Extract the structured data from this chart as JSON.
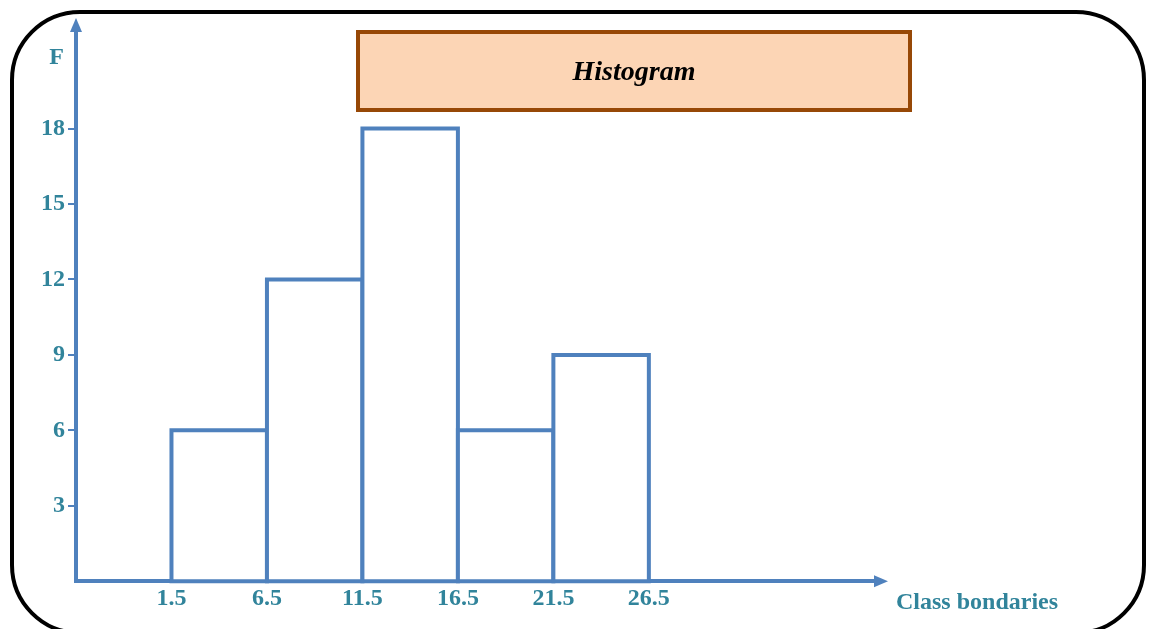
{
  "chart_data": {
    "type": "histogram",
    "title": "Histogram",
    "xlabel": "Class bondaries",
    "ylabel": "F",
    "bins": [
      1.5,
      6.5,
      11.5,
      16.5,
      21.5,
      26.5
    ],
    "values": [
      6,
      12,
      18,
      6,
      9
    ],
    "color": "#4f81bd",
    "xlim": [
      -3.5,
      38.5
    ],
    "ylim": [
      0,
      22
    ],
    "xticks": [
      1.5,
      6.5,
      11.5,
      16.5,
      21.5,
      26.5
    ],
    "yticks": [
      3,
      6,
      9,
      12,
      15,
      18
    ]
  }
}
